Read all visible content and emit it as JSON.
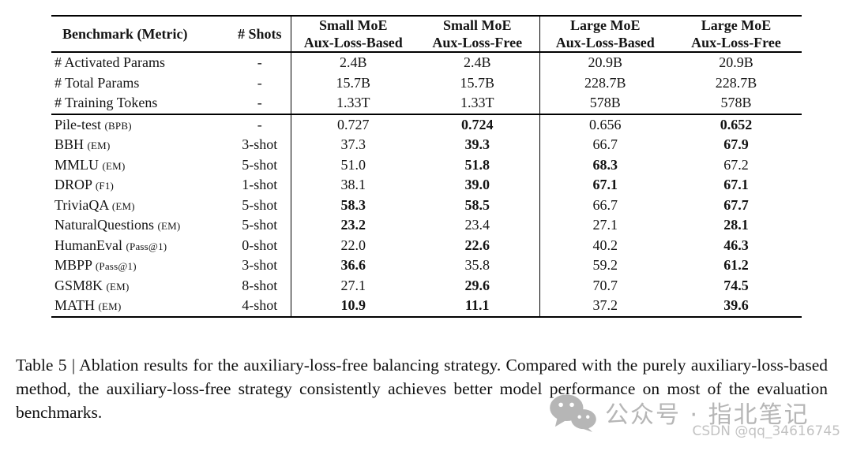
{
  "table": {
    "columns": [
      {
        "label": "Benchmark (Metric)"
      },
      {
        "label": "# Shots"
      },
      {
        "label": "Small MoE\nAux-Loss-Based"
      },
      {
        "label": "Small MoE\nAux-Loss-Free"
      },
      {
        "label": "Large MoE\nAux-Loss-Based"
      },
      {
        "label": "Large MoE\nAux-Loss-Free"
      }
    ],
    "params_rows": [
      {
        "name": "# Activated Params",
        "metric": "",
        "shots": "-",
        "values": [
          "2.4B",
          "2.4B",
          "20.9B",
          "20.9B"
        ],
        "bold": [
          false,
          false,
          false,
          false
        ]
      },
      {
        "name": "# Total Params",
        "metric": "",
        "shots": "-",
        "values": [
          "15.7B",
          "15.7B",
          "228.7B",
          "228.7B"
        ],
        "bold": [
          false,
          false,
          false,
          false
        ]
      },
      {
        "name": "# Training Tokens",
        "metric": "",
        "shots": "-",
        "values": [
          "1.33T",
          "1.33T",
          "578B",
          "578B"
        ],
        "bold": [
          false,
          false,
          false,
          false
        ]
      }
    ],
    "benchmark_rows": [
      {
        "name": "Pile-test",
        "metric": "(BPB)",
        "shots": "-",
        "values": [
          "0.727",
          "0.724",
          "0.656",
          "0.652"
        ],
        "bold": [
          false,
          true,
          false,
          true
        ]
      },
      {
        "name": "BBH",
        "metric": "(EM)",
        "shots": "3-shot",
        "values": [
          "37.3",
          "39.3",
          "66.7",
          "67.9"
        ],
        "bold": [
          false,
          true,
          false,
          true
        ]
      },
      {
        "name": "MMLU",
        "metric": "(EM)",
        "shots": "5-shot",
        "values": [
          "51.0",
          "51.8",
          "68.3",
          "67.2"
        ],
        "bold": [
          false,
          true,
          true,
          false
        ]
      },
      {
        "name": "DROP",
        "metric": "(F1)",
        "shots": "1-shot",
        "values": [
          "38.1",
          "39.0",
          "67.1",
          "67.1"
        ],
        "bold": [
          false,
          true,
          true,
          true
        ]
      },
      {
        "name": "TriviaQA",
        "metric": "(EM)",
        "shots": "5-shot",
        "values": [
          "58.3",
          "58.5",
          "66.7",
          "67.7"
        ],
        "bold": [
          true,
          true,
          false,
          true
        ]
      },
      {
        "name": "NaturalQuestions",
        "metric": "(EM)",
        "shots": "5-shot",
        "values": [
          "23.2",
          "23.4",
          "27.1",
          "28.1"
        ],
        "bold": [
          true,
          false,
          false,
          true
        ]
      },
      {
        "name": "HumanEval",
        "metric": "(Pass@1)",
        "shots": "0-shot",
        "values": [
          "22.0",
          "22.6",
          "40.2",
          "46.3"
        ],
        "bold": [
          false,
          true,
          false,
          true
        ]
      },
      {
        "name": "MBPP",
        "metric": "(Pass@1)",
        "shots": "3-shot",
        "values": [
          "36.6",
          "35.8",
          "59.2",
          "61.2"
        ],
        "bold": [
          true,
          false,
          false,
          true
        ]
      },
      {
        "name": "GSM8K",
        "metric": "(EM)",
        "shots": "8-shot",
        "values": [
          "27.1",
          "29.6",
          "70.7",
          "74.5"
        ],
        "bold": [
          false,
          true,
          false,
          true
        ]
      },
      {
        "name": "MATH",
        "metric": "(EM)",
        "shots": "4-shot",
        "values": [
          "10.9",
          "11.1",
          "37.2",
          "39.6"
        ],
        "bold": [
          true,
          true,
          false,
          true
        ]
      }
    ]
  },
  "caption": {
    "text": "Table 5 | Ablation results for the auxiliary-loss-free balancing strategy. Compared with the purely auxiliary-loss-based method, the auxiliary-loss-free strategy consistently achieves better model performance on most of the evaluation benchmarks."
  },
  "watermark": {
    "wechat_text": "公众号 · 指北笔记",
    "csdn_text": "CSDN @qq_34616745",
    "color": "#b6b6b6",
    "csdn_color": "#c2c2c2"
  },
  "colors": {
    "text": "#141414",
    "rule": "#000000",
    "background": "#ffffff"
  }
}
